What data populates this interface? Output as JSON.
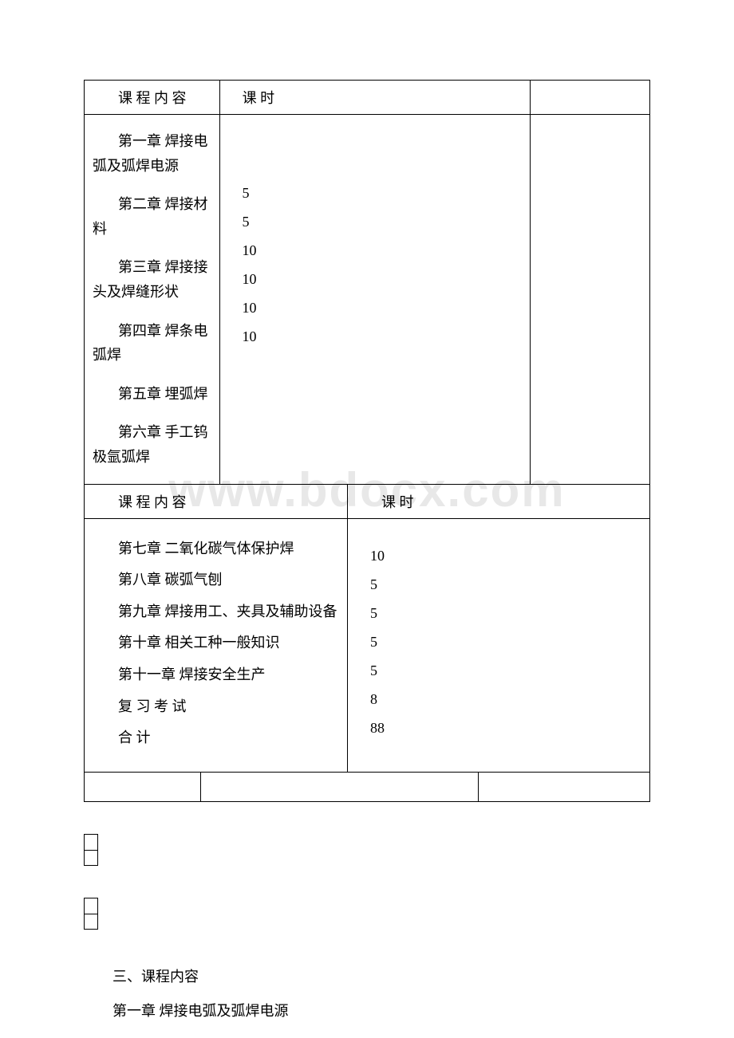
{
  "watermark": "www.bdocx.com",
  "table": {
    "header1": {
      "col1": "课 程 内 容",
      "col2": "课 时"
    },
    "section1": {
      "chapters": {
        "ch1": "第一章 焊接电弧及弧焊电源",
        "ch2": "第二章 焊接材料",
        "ch3": "第三章 焊接接头及焊缝形状",
        "ch4": "第四章 焊条电弧焊",
        "ch5": "第五章 埋弧焊",
        "ch6": "第六章 手工钨极氩弧焊"
      },
      "hours": {
        "h1": "5",
        "h2": "5",
        "h3": "10",
        "h4": "10",
        "h5": "10",
        "h6": "10"
      }
    },
    "header2": {
      "col1": "课 程 内 容",
      "col2": "课 时"
    },
    "section2": {
      "chapters": {
        "ch7": "第七章 二氧化碳气体保护焊",
        "ch8": "第八章 碳弧气刨",
        "ch9": "第九章 焊接用工、夹具及辅助设备",
        "ch10": "第十章 相关工种一般知识",
        "ch11": "第十一章 焊接安全生产",
        "review": "复 习 考 试",
        "total": "合 计"
      },
      "hours": {
        "h7": "10",
        "h8": "5",
        "h9": "5",
        "h10": "5",
        "h11": "5",
        "hreview": "8",
        "htotal": "88"
      }
    }
  },
  "bottom": {
    "line1": "三、课程内容",
    "line2": "第一章 焊接电弧及弧焊电源"
  }
}
